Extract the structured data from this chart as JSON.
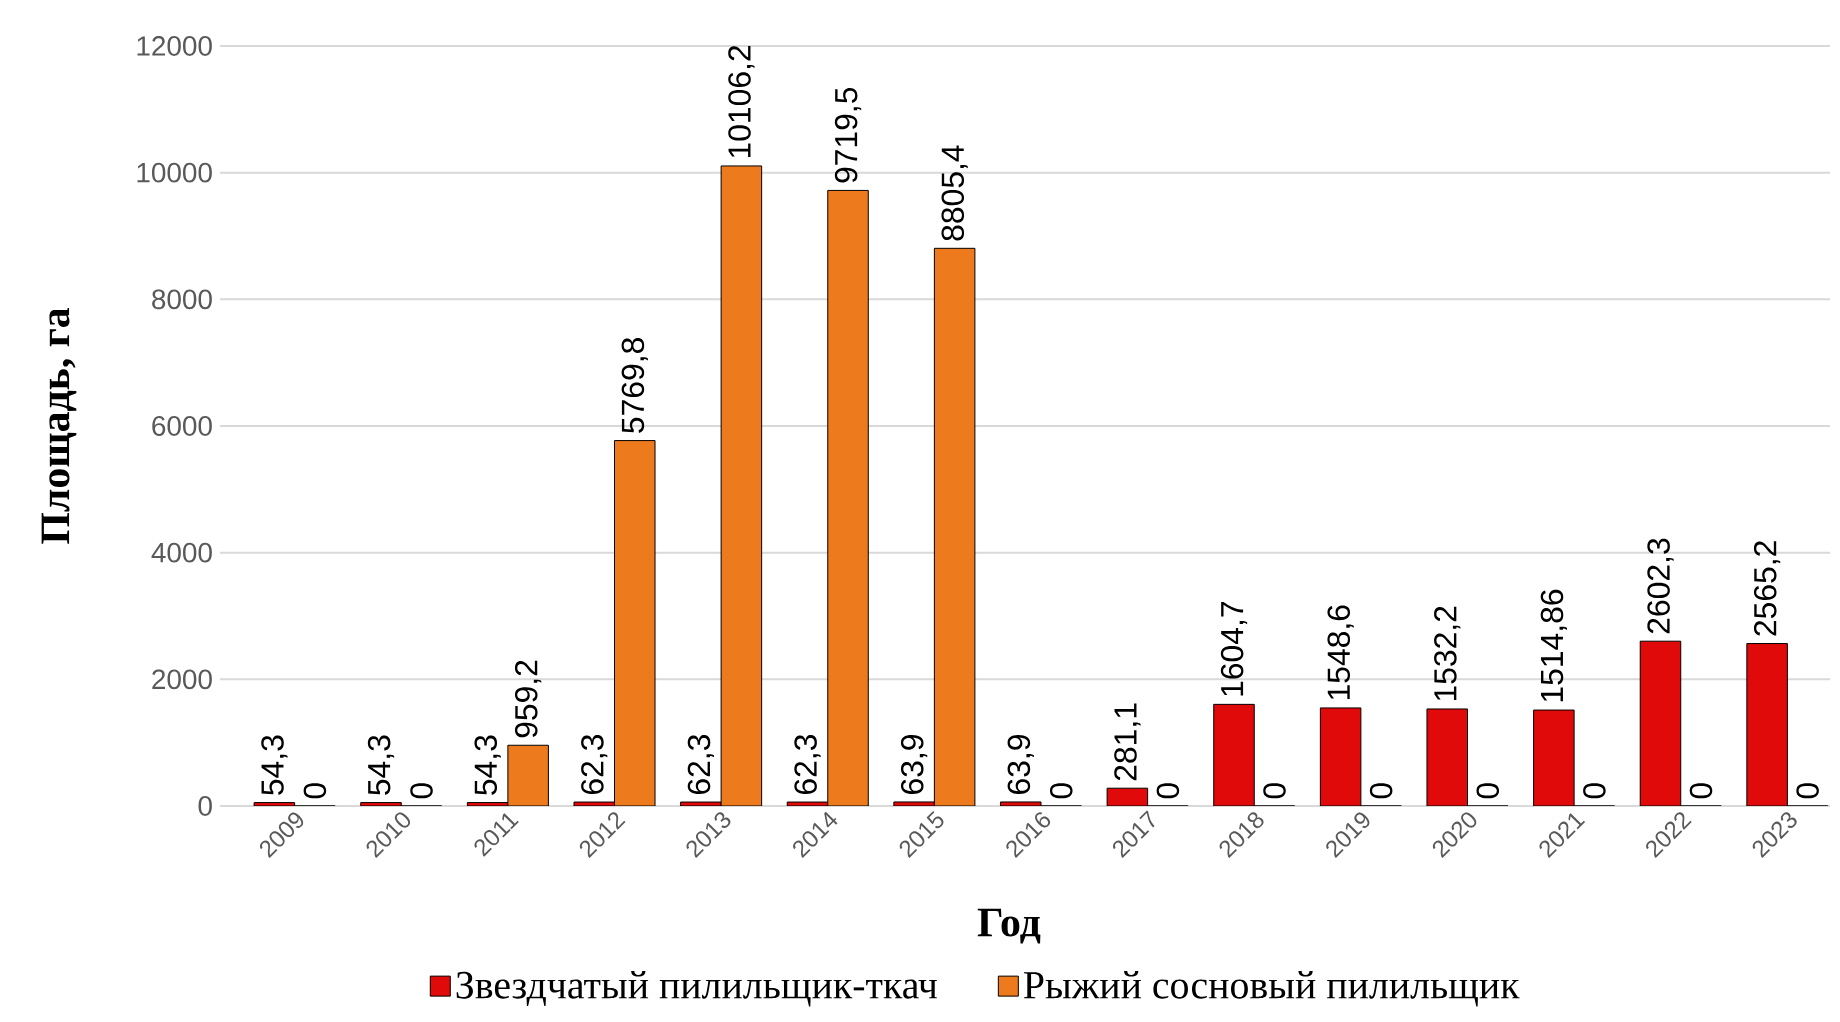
{
  "chart_data": {
    "type": "bar",
    "xlabel": "Год",
    "ylabel": "Площадь, га",
    "categories": [
      "2009",
      "2010",
      "2011",
      "2012",
      "2013",
      "2014",
      "2015",
      "2016",
      "2017",
      "2018",
      "2019",
      "2020",
      "2021",
      "2022",
      "2023"
    ],
    "series": [
      {
        "name": "Звездчатый пилильщик-ткач",
        "color": "#e00a0a",
        "values": [
          54.3,
          54.3,
          54.3,
          62.3,
          62.3,
          62.3,
          63.9,
          63.9,
          281.1,
          1604.7,
          1548.6,
          1532.2,
          1514.86,
          2602.3,
          2565.2
        ],
        "value_labels": [
          "54,3",
          "54,3",
          "54,3",
          "62,3",
          "62,3",
          "62,3",
          "63,9",
          "63,9",
          "281,1",
          "1604,7",
          "1548,6",
          "1532,2",
          "1514,86",
          "2602,3",
          "2565,2"
        ]
      },
      {
        "name": "Рыжий сосновый пилильщик",
        "color": "#ee7a1e",
        "values": [
          0,
          0,
          959.2,
          5769.8,
          10106.2,
          9719.5,
          8805.4,
          0,
          0,
          0,
          0,
          0,
          0,
          0,
          0
        ],
        "value_labels": [
          "0",
          "0",
          "959,2",
          "5769,8",
          "10106,2",
          "9719,5",
          "8805,4",
          "0",
          "0",
          "0",
          "0",
          "0",
          "0",
          "0",
          "0"
        ]
      }
    ],
    "ylim": [
      0,
      12000
    ],
    "yticks": [
      0,
      2000,
      4000,
      6000,
      8000,
      10000,
      12000
    ],
    "grid": "y",
    "legend": "bottom"
  }
}
